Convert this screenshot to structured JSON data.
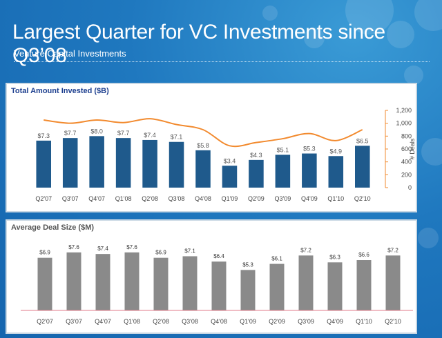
{
  "slide": {
    "title": "Largest Quarter for VC Investments since Q3’08",
    "subtitle": "Venture Capital Investments"
  },
  "colors": {
    "background": "#1a6fb6",
    "bar_blue": "#1f5a8c",
    "line_orange": "#f28a2e",
    "bar_gray": "#8a8a8a",
    "panel1_title": "#1d3f8f",
    "panel2_title": "#555555"
  },
  "chart_data": [
    {
      "type": "bar",
      "title": "Total Amount Invested ($B)",
      "categories": [
        "Q2'07",
        "Q3'07",
        "Q4'07",
        "Q1'08",
        "Q2'08",
        "Q3'08",
        "Q4'08",
        "Q1'09",
        "Q2'09",
        "Q3'09",
        "Q4'09",
        "Q1'10",
        "Q2'10"
      ],
      "series": [
        {
          "values": [
            7.3,
            7.7,
            8.0,
            7.7,
            7.4,
            7.1,
            5.8,
            3.4,
            4.3,
            5.1,
            5.3,
            4.9,
            6.5
          ]
        },
        {
          "name": "# Deals",
          "type": "line",
          "axis": "right",
          "values": [
            1050,
            1000,
            1050,
            1010,
            1070,
            980,
            900,
            650,
            700,
            760,
            840,
            730,
            900
          ]
        }
      ],
      "data_labels": [
        "$7.3",
        "$7.7",
        "$8.0",
        "$7.7",
        "$7.4",
        "$7.1",
        "$5.8",
        "$3.4",
        "$4.3",
        "$5.1",
        "$5.3",
        "$4.9",
        "$6.5"
      ],
      "ylim": [
        0,
        12
      ],
      "y2label": "# Deals",
      "y2lim": [
        0,
        1200
      ],
      "y2ticks": [
        "0",
        "200",
        "400",
        "600",
        "800",
        "1,000",
        "1,200"
      ],
      "y2tick_values": [
        0,
        200,
        400,
        600,
        800,
        1000,
        1200
      ],
      "legend": "none",
      "grid": false
    },
    {
      "type": "bar",
      "title": "Average Deal Size ($M)",
      "categories": [
        "Q2'07",
        "Q3'07",
        "Q4'07",
        "Q1'08",
        "Q2'08",
        "Q3'08",
        "Q4'08",
        "Q1'09",
        "Q2'09",
        "Q3'09",
        "Q4'09",
        "Q1'10",
        "Q2'10"
      ],
      "series": [
        {
          "values": [
            6.9,
            7.6,
            7.4,
            7.6,
            6.9,
            7.1,
            6.4,
            5.3,
            6.1,
            7.2,
            6.3,
            6.6,
            7.2
          ]
        }
      ],
      "data_labels": [
        "$6.9",
        "$7.6",
        "$7.4",
        "$7.6",
        "$6.9",
        "$7.1",
        "$6.4",
        "$5.3",
        "$6.1",
        "$7.2",
        "$6.3",
        "$6.6",
        "$7.2"
      ],
      "ylim": [
        0,
        8.5
      ],
      "legend": "none",
      "grid": false
    }
  ]
}
